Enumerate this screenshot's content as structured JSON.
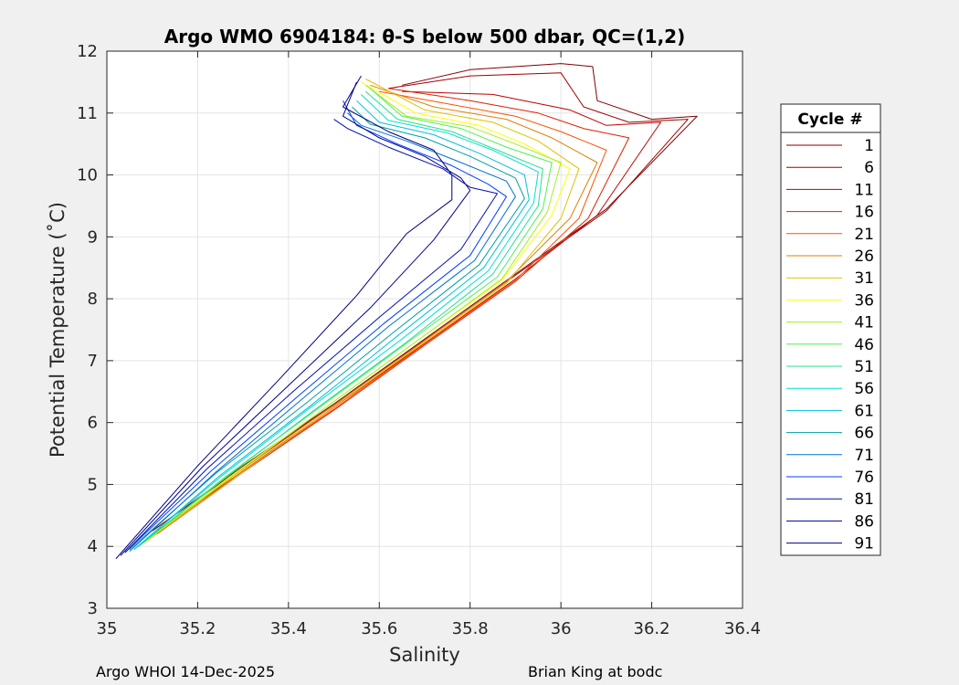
{
  "chart_data": {
    "type": "line",
    "title": "Argo WMO 6904184: θ-S below 500 dbar,  QC=(1,2)",
    "xlabel": "Salinity",
    "ylabel": "Potential Temperature (˚C)",
    "xlim": [
      35,
      36.4
    ],
    "ylim": [
      3,
      12
    ],
    "xticks": [
      "35",
      "35.2",
      "35.4",
      "35.6",
      "35.8",
      "36",
      "36.2",
      "36.4"
    ],
    "yticks": [
      "3",
      "4",
      "5",
      "6",
      "7",
      "8",
      "9",
      "10",
      "11",
      "12"
    ],
    "grid": true,
    "legend": {
      "title": "Cycle #",
      "placement": "outside-right",
      "entries": [
        {
          "label": "1",
          "color": "#800000"
        },
        {
          "label": "6",
          "color": "#a00000"
        },
        {
          "label": "11",
          "color": "#c00000"
        },
        {
          "label": "16",
          "color": "#e02000"
        },
        {
          "label": "21",
          "color": "#ff5000"
        },
        {
          "label": "26",
          "color": "#e08000"
        },
        {
          "label": "31",
          "color": "#e0c000"
        },
        {
          "label": "36",
          "color": "#ffff00"
        },
        {
          "label": "41",
          "color": "#a0f020"
        },
        {
          "label": "46",
          "color": "#50f050"
        },
        {
          "label": "51",
          "color": "#20e090"
        },
        {
          "label": "56",
          "color": "#00e0d0"
        },
        {
          "label": "61",
          "color": "#00c0e0"
        },
        {
          "label": "66",
          "color": "#00a0a0"
        },
        {
          "label": "71",
          "color": "#0070d0"
        },
        {
          "label": "76",
          "color": "#0040ff"
        },
        {
          "label": "81",
          "color": "#0010b0"
        },
        {
          "label": "86",
          "color": "#000090"
        },
        {
          "label": "91",
          "color": "#000080"
        }
      ]
    },
    "series": [
      {
        "cycle": 1,
        "color": "#800000",
        "x": [
          35.1,
          35.3,
          35.5,
          35.7,
          35.9,
          36.1,
          36.3,
          36.2,
          36.08,
          36.07,
          36.0,
          35.8,
          35.65
        ],
        "y": [
          4.25,
          5.3,
          6.3,
          7.35,
          8.4,
          9.45,
          10.95,
          10.9,
          11.2,
          11.75,
          11.8,
          11.7,
          11.45
        ]
      },
      {
        "cycle": 6,
        "color": "#a00000",
        "x": [
          35.1,
          35.3,
          35.5,
          35.7,
          35.9,
          36.1,
          36.28,
          36.15,
          36.05,
          36.0,
          35.8,
          35.62
        ],
        "y": [
          4.25,
          5.28,
          6.28,
          7.33,
          8.38,
          9.42,
          10.9,
          10.85,
          11.1,
          11.65,
          11.6,
          11.4
        ]
      },
      {
        "cycle": 11,
        "color": "#c00000",
        "x": [
          35.11,
          35.3,
          35.5,
          35.7,
          35.9,
          36.08,
          36.22,
          36.1,
          36.02,
          35.85,
          35.65
        ],
        "y": [
          4.2,
          5.22,
          6.25,
          7.28,
          8.32,
          9.35,
          10.85,
          10.8,
          11.05,
          11.3,
          11.35
        ]
      },
      {
        "cycle": 16,
        "color": "#e02000",
        "x": [
          35.11,
          35.3,
          35.5,
          35.7,
          35.9,
          36.06,
          36.15,
          36.05,
          35.95,
          35.8,
          35.62
        ],
        "y": [
          4.2,
          5.2,
          6.2,
          7.25,
          8.28,
          9.3,
          10.6,
          10.75,
          11.0,
          11.2,
          11.4
        ]
      },
      {
        "cycle": 21,
        "color": "#ff5000",
        "x": [
          35.1,
          35.3,
          35.5,
          35.7,
          35.9,
          36.04,
          36.1,
          36.0,
          35.9,
          35.75,
          35.6
        ],
        "y": [
          4.2,
          5.22,
          6.22,
          7.27,
          8.3,
          9.3,
          10.4,
          10.7,
          10.95,
          11.15,
          11.35
        ]
      },
      {
        "cycle": 26,
        "color": "#e08000",
        "x": [
          35.09,
          35.28,
          35.48,
          35.68,
          35.88,
          36.02,
          36.08,
          35.98,
          35.88,
          35.72,
          35.58
        ],
        "y": [
          4.1,
          5.15,
          6.18,
          7.22,
          8.28,
          9.3,
          10.2,
          10.6,
          10.9,
          11.1,
          11.45
        ]
      },
      {
        "cycle": 31,
        "color": "#e0c000",
        "x": [
          35.08,
          35.28,
          35.48,
          35.68,
          35.88,
          36.0,
          36.04,
          35.95,
          35.85,
          35.7,
          35.57
        ],
        "y": [
          4.05,
          5.1,
          6.15,
          7.2,
          8.25,
          9.3,
          10.1,
          10.55,
          10.85,
          11.05,
          11.55
        ]
      },
      {
        "cycle": 36,
        "color": "#ffff00",
        "x": [
          35.08,
          35.27,
          35.47,
          35.67,
          35.87,
          35.98,
          36.02,
          35.92,
          35.82,
          35.68,
          35.56
        ],
        "y": [
          4.05,
          5.12,
          6.18,
          7.25,
          8.3,
          9.35,
          10.1,
          10.5,
          10.8,
          11.0,
          11.5
        ]
      },
      {
        "cycle": 41,
        "color": "#a0f020",
        "x": [
          35.07,
          35.27,
          35.47,
          35.67,
          35.87,
          35.97,
          36.0,
          35.9,
          35.8,
          35.66,
          35.57
        ],
        "y": [
          4.0,
          5.1,
          6.18,
          7.25,
          8.32,
          9.4,
          10.2,
          10.5,
          10.78,
          10.95,
          11.45
        ]
      },
      {
        "cycle": 46,
        "color": "#50f050",
        "x": [
          35.07,
          35.26,
          35.46,
          35.66,
          35.86,
          35.96,
          35.98,
          35.88,
          35.78,
          35.65,
          35.58
        ],
        "y": [
          4.0,
          5.12,
          6.2,
          7.28,
          8.35,
          9.45,
          10.2,
          10.45,
          10.75,
          10.95,
          11.4
        ]
      },
      {
        "cycle": 51,
        "color": "#20e090",
        "x": [
          35.06,
          35.26,
          35.46,
          35.66,
          35.85,
          35.95,
          35.96,
          35.86,
          35.76,
          35.64,
          35.57
        ],
        "y": [
          3.95,
          5.1,
          6.22,
          7.3,
          8.4,
          9.5,
          10.1,
          10.4,
          10.7,
          10.9,
          11.35
        ]
      },
      {
        "cycle": 56,
        "color": "#00e0d0",
        "x": [
          35.06,
          35.25,
          35.45,
          35.65,
          35.84,
          35.94,
          35.95,
          35.85,
          35.75,
          35.62,
          35.56
        ],
        "y": [
          3.95,
          5.12,
          6.25,
          7.35,
          8.45,
          9.55,
          10.05,
          10.4,
          10.68,
          10.88,
          11.3
        ]
      },
      {
        "cycle": 61,
        "color": "#00c0e0",
        "x": [
          35.06,
          35.25,
          35.45,
          35.64,
          35.83,
          35.93,
          35.92,
          35.82,
          35.72,
          35.6,
          35.55
        ],
        "y": [
          3.95,
          5.15,
          6.28,
          7.4,
          8.5,
          9.6,
          10.0,
          10.35,
          10.65,
          10.85,
          11.2
        ]
      },
      {
        "cycle": 66,
        "color": "#00a0a0",
        "x": [
          35.05,
          35.24,
          35.44,
          35.63,
          35.82,
          35.92,
          35.9,
          35.8,
          35.7,
          35.58,
          35.54
        ],
        "y": [
          3.95,
          5.18,
          6.32,
          7.45,
          8.55,
          9.62,
          9.95,
          10.3,
          10.6,
          10.82,
          11.1
        ]
      },
      {
        "cycle": 71,
        "color": "#0070d0",
        "x": [
          35.05,
          35.24,
          35.43,
          35.62,
          35.81,
          35.9,
          35.88,
          35.78,
          35.66,
          35.56,
          35.53
        ],
        "y": [
          3.92,
          5.2,
          6.38,
          7.55,
          8.62,
          9.65,
          9.9,
          10.2,
          10.55,
          10.8,
          11.0
        ]
      },
      {
        "cycle": 76,
        "color": "#0040ff",
        "x": [
          35.04,
          35.23,
          35.42,
          35.61,
          35.8,
          35.88,
          35.84,
          35.76,
          35.64,
          35.55,
          35.52
        ],
        "y": [
          3.9,
          5.22,
          6.42,
          7.6,
          8.7,
          9.65,
          9.85,
          10.15,
          10.5,
          10.8,
          11.2
        ]
      },
      {
        "cycle": 81,
        "color": "#0010b0",
        "x": [
          35.04,
          35.22,
          35.41,
          35.6,
          35.78,
          35.86,
          35.8,
          35.74,
          35.62,
          35.53,
          35.5
        ],
        "y": [
          3.9,
          5.25,
          6.5,
          7.7,
          8.8,
          9.7,
          9.8,
          10.1,
          10.45,
          10.75,
          10.9
        ]
      },
      {
        "cycle": 86,
        "color": "#000090",
        "x": [
          35.03,
          35.21,
          35.4,
          35.58,
          35.72,
          35.8,
          35.78,
          35.7,
          35.6,
          35.52,
          35.55
        ],
        "y": [
          3.85,
          5.28,
          6.6,
          7.85,
          8.95,
          9.75,
          9.95,
          10.3,
          10.6,
          10.95,
          11.5
        ]
      },
      {
        "cycle": 91,
        "color": "#000080",
        "x": [
          35.02,
          35.2,
          35.38,
          35.55,
          35.66,
          35.76,
          35.76,
          35.72,
          35.62,
          35.52,
          35.56
        ],
        "y": [
          3.8,
          5.3,
          6.7,
          8.05,
          9.05,
          9.6,
          10.0,
          10.4,
          10.7,
          11.1,
          11.6
        ]
      }
    ]
  },
  "footer": {
    "left": "Argo WHOI 14-Dec-2025",
    "right": "Brian King at bodc"
  }
}
